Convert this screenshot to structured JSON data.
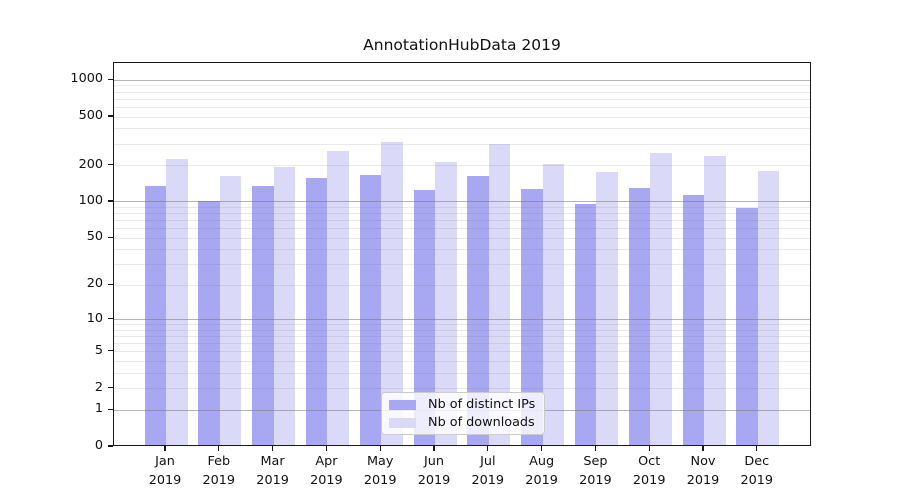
{
  "title": "AnnotationHubData 2019",
  "colors": {
    "ips_bar": "#a7a7f2",
    "downloads_bar": "#dadaf8",
    "major_gridline": "#b5b5b5",
    "minor_gridline": "#e9e9e9",
    "axis": "#1a1a1a"
  },
  "legend": {
    "items": [
      {
        "label": "Nb of distinct IPs",
        "color_key": "ips_bar"
      },
      {
        "label": "Nb of downloads",
        "color_key": "downloads_bar"
      }
    ]
  },
  "axes": {
    "y_tick_labels": [
      "0",
      "1",
      "2",
      "5",
      "10",
      "20",
      "50",
      "100",
      "200",
      "500",
      "1000"
    ],
    "x_year_label": "2019"
  },
  "chart_data": {
    "type": "bar",
    "title": "AnnotationHubData 2019",
    "categories": [
      "Jan 2019",
      "Feb 2019",
      "Mar 2019",
      "Apr 2019",
      "May 2019",
      "Jun 2019",
      "Jul 2019",
      "Aug 2019",
      "Sep 2019",
      "Oct 2019",
      "Nov 2019",
      "Dec 2019"
    ],
    "series": [
      {
        "name": "Nb of distinct IPs",
        "values": [
          130,
          98,
          130,
          152,
          160,
          122,
          158,
          124,
          92,
          125,
          110,
          86
        ]
      },
      {
        "name": "Nb of downloads",
        "values": [
          220,
          158,
          186,
          255,
          300,
          205,
          291,
          200,
          170,
          243,
          230,
          172
        ]
      }
    ],
    "xlabel": "",
    "ylabel": "",
    "y_scale": "log10(value+1)",
    "y_ticks": [
      0,
      1,
      2,
      5,
      10,
      20,
      50,
      100,
      200,
      500,
      1000
    ],
    "ylim": [
      0,
      1386
    ],
    "grid": true,
    "grid_major_at": [
      1,
      10,
      100,
      1000
    ],
    "grid_minor_decades": [
      1,
      10,
      100
    ],
    "grid_minor_multipliers": [
      2,
      3,
      4,
      5,
      6,
      7,
      8,
      9
    ],
    "legend_position": "inside lower center"
  }
}
